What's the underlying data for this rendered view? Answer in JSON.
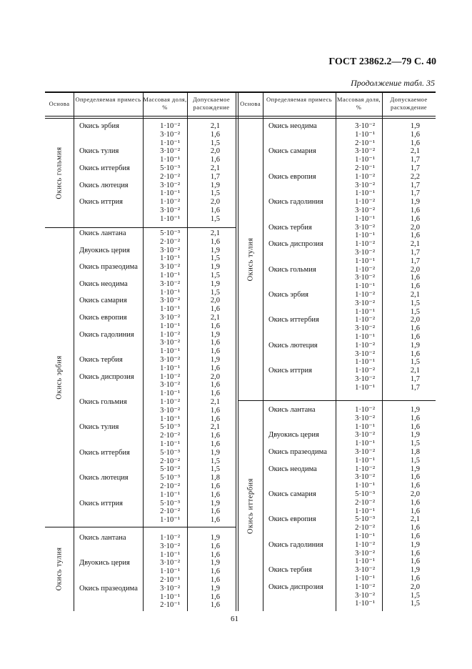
{
  "header": {
    "title": "ГОСТ 23862.2—79 С. 40",
    "continuation": "Продолжение табл. 35",
    "page_number": "61"
  },
  "columns": [
    "Основа",
    "Определяемая примесь",
    "Массовая доля, %",
    "Допускаемое расхождение"
  ],
  "left": [
    {
      "base": "Окись гольмия",
      "items": [
        {
          "name": "Окись эрбия",
          "rows": [
            [
              "1·10⁻²",
              "2,1"
            ],
            [
              "3·10⁻²",
              "1,6"
            ],
            [
              "1·10⁻¹",
              "1,5"
            ]
          ]
        },
        {
          "name": "Окись тулия",
          "rows": [
            [
              "3·10⁻²",
              "2,0"
            ],
            [
              "1·10⁻¹",
              "1,6"
            ]
          ]
        },
        {
          "name": "Окись иттербия",
          "rows": [
            [
              "5·10⁻³",
              "2,1"
            ],
            [
              "2·10⁻²",
              "1,7"
            ]
          ]
        },
        {
          "name": "Окись лютеция",
          "rows": [
            [
              "3·10⁻²",
              "1,9"
            ],
            [
              "1·10⁻¹",
              "1,5"
            ]
          ]
        },
        {
          "name": "Окись иттрия",
          "rows": [
            [
              "1·10⁻²",
              "2,0"
            ],
            [
              "3·10⁻²",
              "1,6"
            ],
            [
              "1·10⁻¹",
              "1,5"
            ]
          ]
        }
      ]
    },
    {
      "base": "Окись эрбия",
      "items": [
        {
          "name": "Окись лантана",
          "rows": [
            [
              "5·10⁻³",
              "2,1"
            ],
            [
              "2·10⁻²",
              "1,6"
            ]
          ]
        },
        {
          "name": "Двуокись церия",
          "rows": [
            [
              "3·10⁻²",
              "1,9"
            ],
            [
              "1·10⁻¹",
              "1,5"
            ]
          ]
        },
        {
          "name": "Окись празеодима",
          "rows": [
            [
              "3·10⁻²",
              "1,9"
            ],
            [
              "1·10⁻¹",
              "1,5"
            ]
          ]
        },
        {
          "name": "Окись неодима",
          "rows": [
            [
              "3·10⁻²",
              "1,9"
            ],
            [
              "1·10⁻¹",
              "1,5"
            ]
          ]
        },
        {
          "name": "Окись самария",
          "rows": [
            [
              "3·10⁻²",
              "2,0"
            ],
            [
              "1·10⁻¹",
              "1,6"
            ]
          ]
        },
        {
          "name": "Окись европия",
          "rows": [
            [
              "3·10⁻²",
              "2,1"
            ],
            [
              "1·10⁻¹",
              "1,6"
            ]
          ]
        },
        {
          "name": "Окись гадолиния",
          "rows": [
            [
              "1·10⁻²",
              "1,9"
            ],
            [
              "3·10⁻²",
              "1,6"
            ],
            [
              "1·10⁻¹",
              "1,6"
            ]
          ]
        },
        {
          "name": "Окись тербия",
          "rows": [
            [
              "3·10⁻²",
              "1,9"
            ],
            [
              "1·10⁻¹",
              "1,6"
            ]
          ]
        },
        {
          "name": "Окись диспрозия",
          "rows": [
            [
              "1·10⁻²",
              "2,0"
            ],
            [
              "3·10⁻²",
              "1,6"
            ],
            [
              "1·10⁻¹",
              "1,6"
            ]
          ]
        },
        {
          "name": "Окись гольмия",
          "rows": [
            [
              "1·10⁻²",
              "2,1"
            ],
            [
              "3·10⁻²",
              "1,6"
            ],
            [
              "1·10⁻¹",
              "1,6"
            ]
          ]
        },
        {
          "name": "Окись тулия",
          "rows": [
            [
              "5·10⁻³",
              "2,1"
            ],
            [
              "2·10⁻²",
              "1,6"
            ],
            [
              "1·10⁻¹",
              "1,6"
            ]
          ]
        },
        {
          "name": "Окись иттербия",
          "rows": [
            [
              "5·10⁻³",
              "1,9"
            ],
            [
              "2·10⁻²",
              "1,5"
            ],
            [
              "5·10⁻²",
              "1,5"
            ]
          ]
        },
        {
          "name": "Окись лютеция",
          "rows": [
            [
              "5·10⁻³",
              "1,8"
            ],
            [
              "2·10⁻²",
              "1,6"
            ],
            [
              "1·10⁻¹",
              "1,6"
            ]
          ]
        },
        {
          "name": "Окись иттрия",
          "rows": [
            [
              "5·10⁻³",
              "1,9"
            ],
            [
              "2·10⁻²",
              "1,6"
            ],
            [
              "1·10⁻¹",
              "1,6"
            ]
          ]
        }
      ]
    },
    {
      "base": "Окись тулия",
      "items": [
        {
          "name": "Окись лантана",
          "rows": [
            [
              "1·10⁻²",
              "1,9"
            ],
            [
              "3·10⁻²",
              "1,6"
            ],
            [
              "1·10⁻¹",
              "1,6"
            ]
          ]
        },
        {
          "name": "Двуокись церия",
          "rows": [
            [
              "3·10⁻²",
              "1,9"
            ],
            [
              "1·10⁻¹",
              "1,6"
            ],
            [
              "2·10⁻¹",
              "1,6"
            ]
          ]
        },
        {
          "name": "Окись празеодима",
          "rows": [
            [
              "3·10⁻²",
              "1,9"
            ],
            [
              "1·10⁻¹",
              "1,6"
            ],
            [
              "2·10⁻¹",
              "1,6"
            ]
          ]
        }
      ]
    }
  ],
  "right": [
    {
      "base": "Окись тулия",
      "items": [
        {
          "name": "Окись неодима",
          "rows": [
            [
              "3·10⁻²",
              "1,9"
            ],
            [
              "1·10⁻¹",
              "1,6"
            ],
            [
              "2·10⁻¹",
              "1,6"
            ]
          ]
        },
        {
          "name": "Окись самария",
          "rows": [
            [
              "3·10⁻²",
              "2,1"
            ],
            [
              "1·10⁻¹",
              "1,7"
            ],
            [
              "2·10⁻¹",
              "1,7"
            ]
          ]
        },
        {
          "name": "Окись европия",
          "rows": [
            [
              "1·10⁻²",
              "2,2"
            ],
            [
              "3·10⁻²",
              "1,7"
            ],
            [
              "1·10⁻¹",
              "1,7"
            ]
          ]
        },
        {
          "name": "Окись гадолиния",
          "rows": [
            [
              "1·10⁻²",
              "1,9"
            ],
            [
              "3·10⁻²",
              "1,6"
            ],
            [
              "1·10⁻¹",
              "1,6"
            ]
          ]
        },
        {
          "name": "Окись тербия",
          "rows": [
            [
              "3·10⁻²",
              "2,0"
            ],
            [
              "1·10⁻¹",
              "1,6"
            ]
          ]
        },
        {
          "name": "Окись диспрозия",
          "rows": [
            [
              "1·10⁻²",
              "2,1"
            ],
            [
              "3·10⁻²",
              "1,7"
            ],
            [
              "1·10⁻¹",
              "1,7"
            ]
          ]
        },
        {
          "name": "Окись гольмия",
          "rows": [
            [
              "1·10⁻²",
              "2,0"
            ],
            [
              "3·10⁻²",
              "1,6"
            ],
            [
              "1·10⁻¹",
              "1,6"
            ]
          ]
        },
        {
          "name": "Окись эрбия",
          "rows": [
            [
              "1·10⁻²",
              "2,1"
            ],
            [
              "3·10⁻²",
              "1,5"
            ],
            [
              "1·10⁻¹",
              "1,5"
            ]
          ]
        },
        {
          "name": "Окись иттербия",
          "rows": [
            [
              "1·10⁻²",
              "2,0"
            ],
            [
              "3·10⁻²",
              "1,6"
            ],
            [
              "1·10⁻¹",
              "1,6"
            ]
          ]
        },
        {
          "name": "Окись лютеция",
          "rows": [
            [
              "1·10⁻²",
              "1,9"
            ],
            [
              "3·10⁻²",
              "1,6"
            ],
            [
              "1·10⁻¹",
              "1,5"
            ]
          ]
        },
        {
          "name": "Окись иттрия",
          "rows": [
            [
              "1·10⁻²",
              "2,1"
            ],
            [
              "3·10⁻²",
              "1,7"
            ],
            [
              "1·10⁻¹",
              "1,7"
            ]
          ]
        }
      ]
    },
    {
      "base": "Окись иттербия",
      "items": [
        {
          "name": "Окись лантана",
          "rows": [
            [
              "1·10⁻²",
              "1,9"
            ],
            [
              "3·10⁻²",
              "1,6"
            ],
            [
              "1·10⁻¹",
              "1,6"
            ]
          ]
        },
        {
          "name": "Двуокись церия",
          "rows": [
            [
              "3·10⁻²",
              "1,9"
            ],
            [
              "1·10⁻¹",
              "1,5"
            ]
          ]
        },
        {
          "name": "Окись празеодима",
          "rows": [
            [
              "3·10⁻²",
              "1,8"
            ],
            [
              "1·10⁻¹",
              "1,5"
            ]
          ]
        },
        {
          "name": "Окись неодима",
          "rows": [
            [
              "1·10⁻²",
              "1,9"
            ],
            [
              "3·10⁻²",
              "1,6"
            ],
            [
              "1·10⁻¹",
              "1,6"
            ]
          ]
        },
        {
          "name": "Окись самария",
          "rows": [
            [
              "5·10⁻³",
              "2,0"
            ],
            [
              "2·10⁻²",
              "1,6"
            ],
            [
              "1·10⁻¹",
              "1,6"
            ]
          ]
        },
        {
          "name": "Окись европия",
          "rows": [
            [
              "5·10⁻³",
              "2,1"
            ],
            [
              "2·10⁻²",
              "1,6"
            ],
            [
              "1·10⁻¹",
              "1,6"
            ]
          ]
        },
        {
          "name": "Окись гадолиния",
          "rows": [
            [
              "1·10⁻²",
              "1,9"
            ],
            [
              "3·10⁻²",
              "1,6"
            ],
            [
              "1·10⁻¹",
              "1,6"
            ]
          ]
        },
        {
          "name": "Окись тербия",
          "rows": [
            [
              "3·10⁻²",
              "1,9"
            ],
            [
              "1·10⁻¹",
              "1,6"
            ]
          ]
        },
        {
          "name": "Окись диспрозия",
          "rows": [
            [
              "1·10⁻²",
              "2,0"
            ],
            [
              "3·10⁻²",
              "1,5"
            ],
            [
              "1·10⁻¹",
              "1,5"
            ]
          ]
        }
      ]
    }
  ]
}
